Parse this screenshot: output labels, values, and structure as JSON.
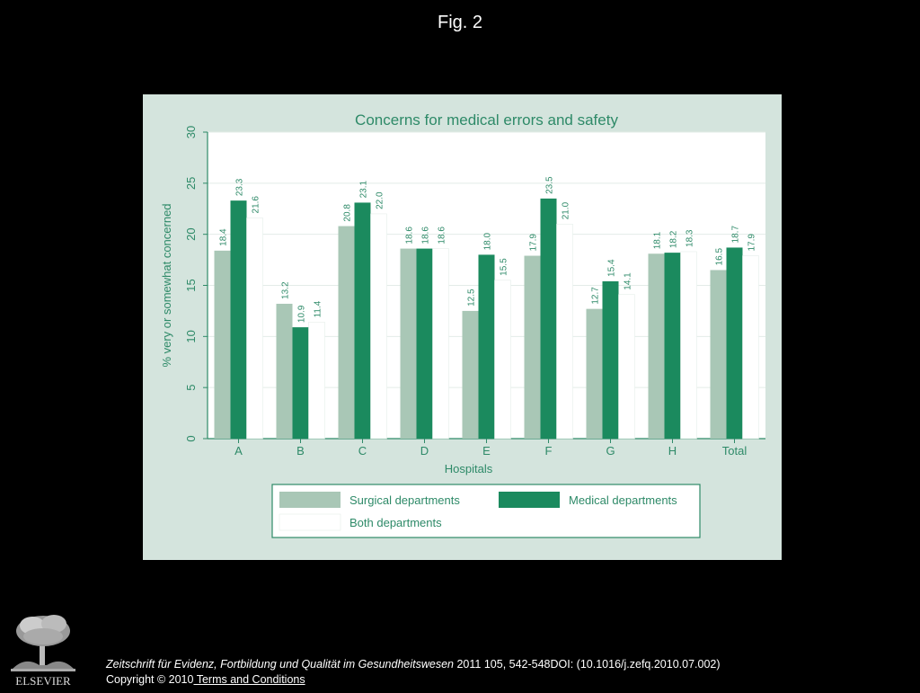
{
  "figure": {
    "label": "Fig. 2"
  },
  "chart_data": {
    "type": "bar",
    "title": "Concerns for medical errors and safety",
    "xlabel": "Hospitals",
    "ylabel": "% very or somewhat concerned",
    "ylim": [
      0,
      30
    ],
    "yticks": [
      0,
      5,
      10,
      15,
      20,
      25,
      30
    ],
    "grid": true,
    "legend_position": "bottom",
    "categories": [
      "A",
      "B",
      "C",
      "D",
      "E",
      "F",
      "G",
      "H",
      "Total"
    ],
    "series": [
      {
        "name": "Surgical departments",
        "color": "#a9c7b6",
        "values": [
          18.4,
          13.2,
          20.8,
          18.6,
          12.5,
          17.9,
          12.7,
          18.1,
          16.5
        ]
      },
      {
        "name": "Medical departments",
        "color": "#1b8a5e",
        "values": [
          23.3,
          10.9,
          23.1,
          18.6,
          18.0,
          23.5,
          15.4,
          18.2,
          18.7
        ]
      },
      {
        "name": "Both departments",
        "color": "#ffffff",
        "values": [
          21.6,
          11.4,
          22.0,
          18.6,
          15.5,
          21.0,
          14.1,
          18.3,
          17.9
        ]
      }
    ],
    "colors": {
      "panel_bg": "#d4e4dd",
      "plot_bg": "#ffffff",
      "text": "#2e8a68",
      "grid": "#e3ece8"
    }
  },
  "footer": {
    "publisher_logo_text": "ELSEVIER",
    "journal": "Zeitschrift für Evidenz, Fortbildung und Qualität im Gesundheitswesen",
    "citation_rest": "2011 105, 542-548DOI: (10.1016/j.zefq.2010.07.002)",
    "copyright": "Copyright © 2010",
    "terms_link": " Terms and Conditions"
  }
}
